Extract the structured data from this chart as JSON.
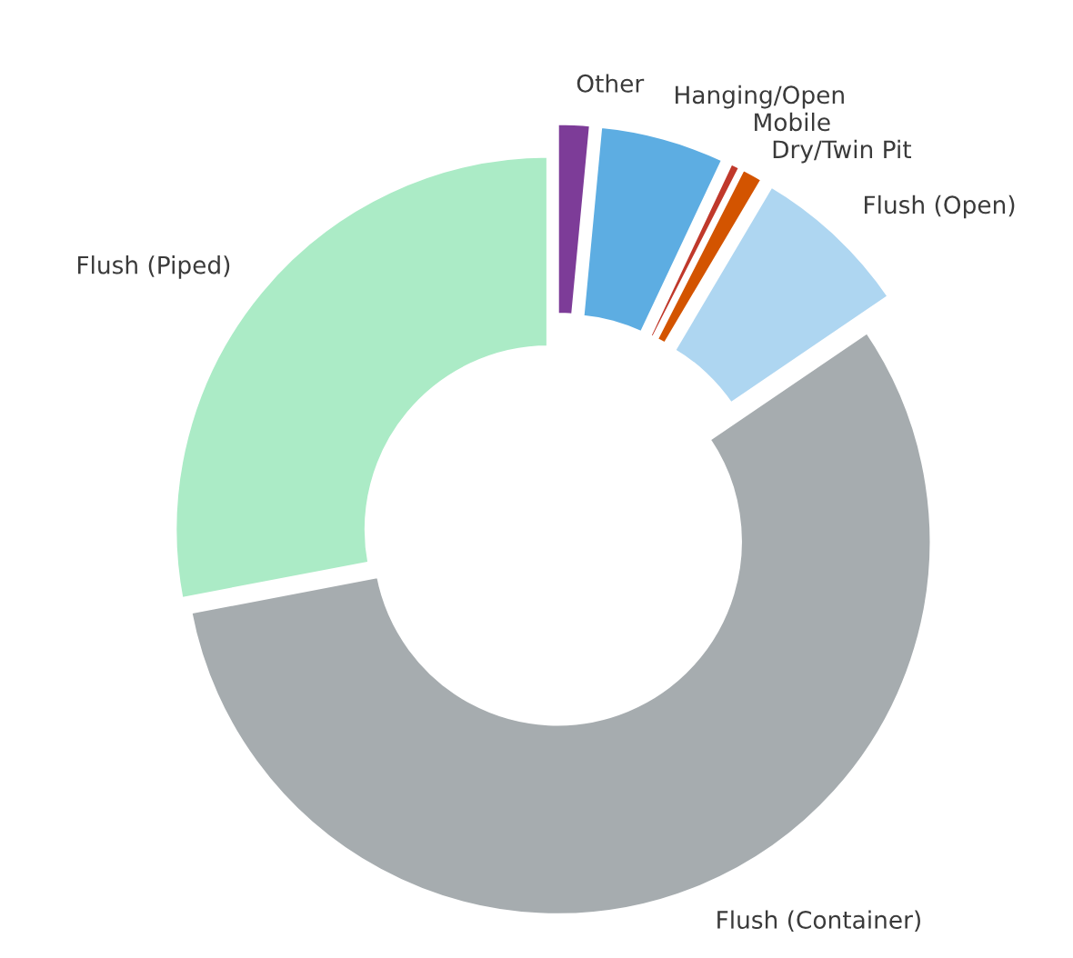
{
  "chart_data": {
    "type": "donut",
    "categories": [
      "Other",
      "Hanging/Open",
      "Mobile",
      "Dry/Twin Pit",
      "Flush (Open)",
      "Flush (Container)",
      "Flush (Piped)"
    ],
    "values": [
      1.5,
      5.5,
      0.5,
      1,
      7,
      56.5,
      28
    ],
    "colors": [
      "#7d3c98",
      "#5dade2",
      "#c0392b",
      "#d35400",
      "#aed6f1",
      "#a6acaf",
      "#abebc6"
    ]
  }
}
